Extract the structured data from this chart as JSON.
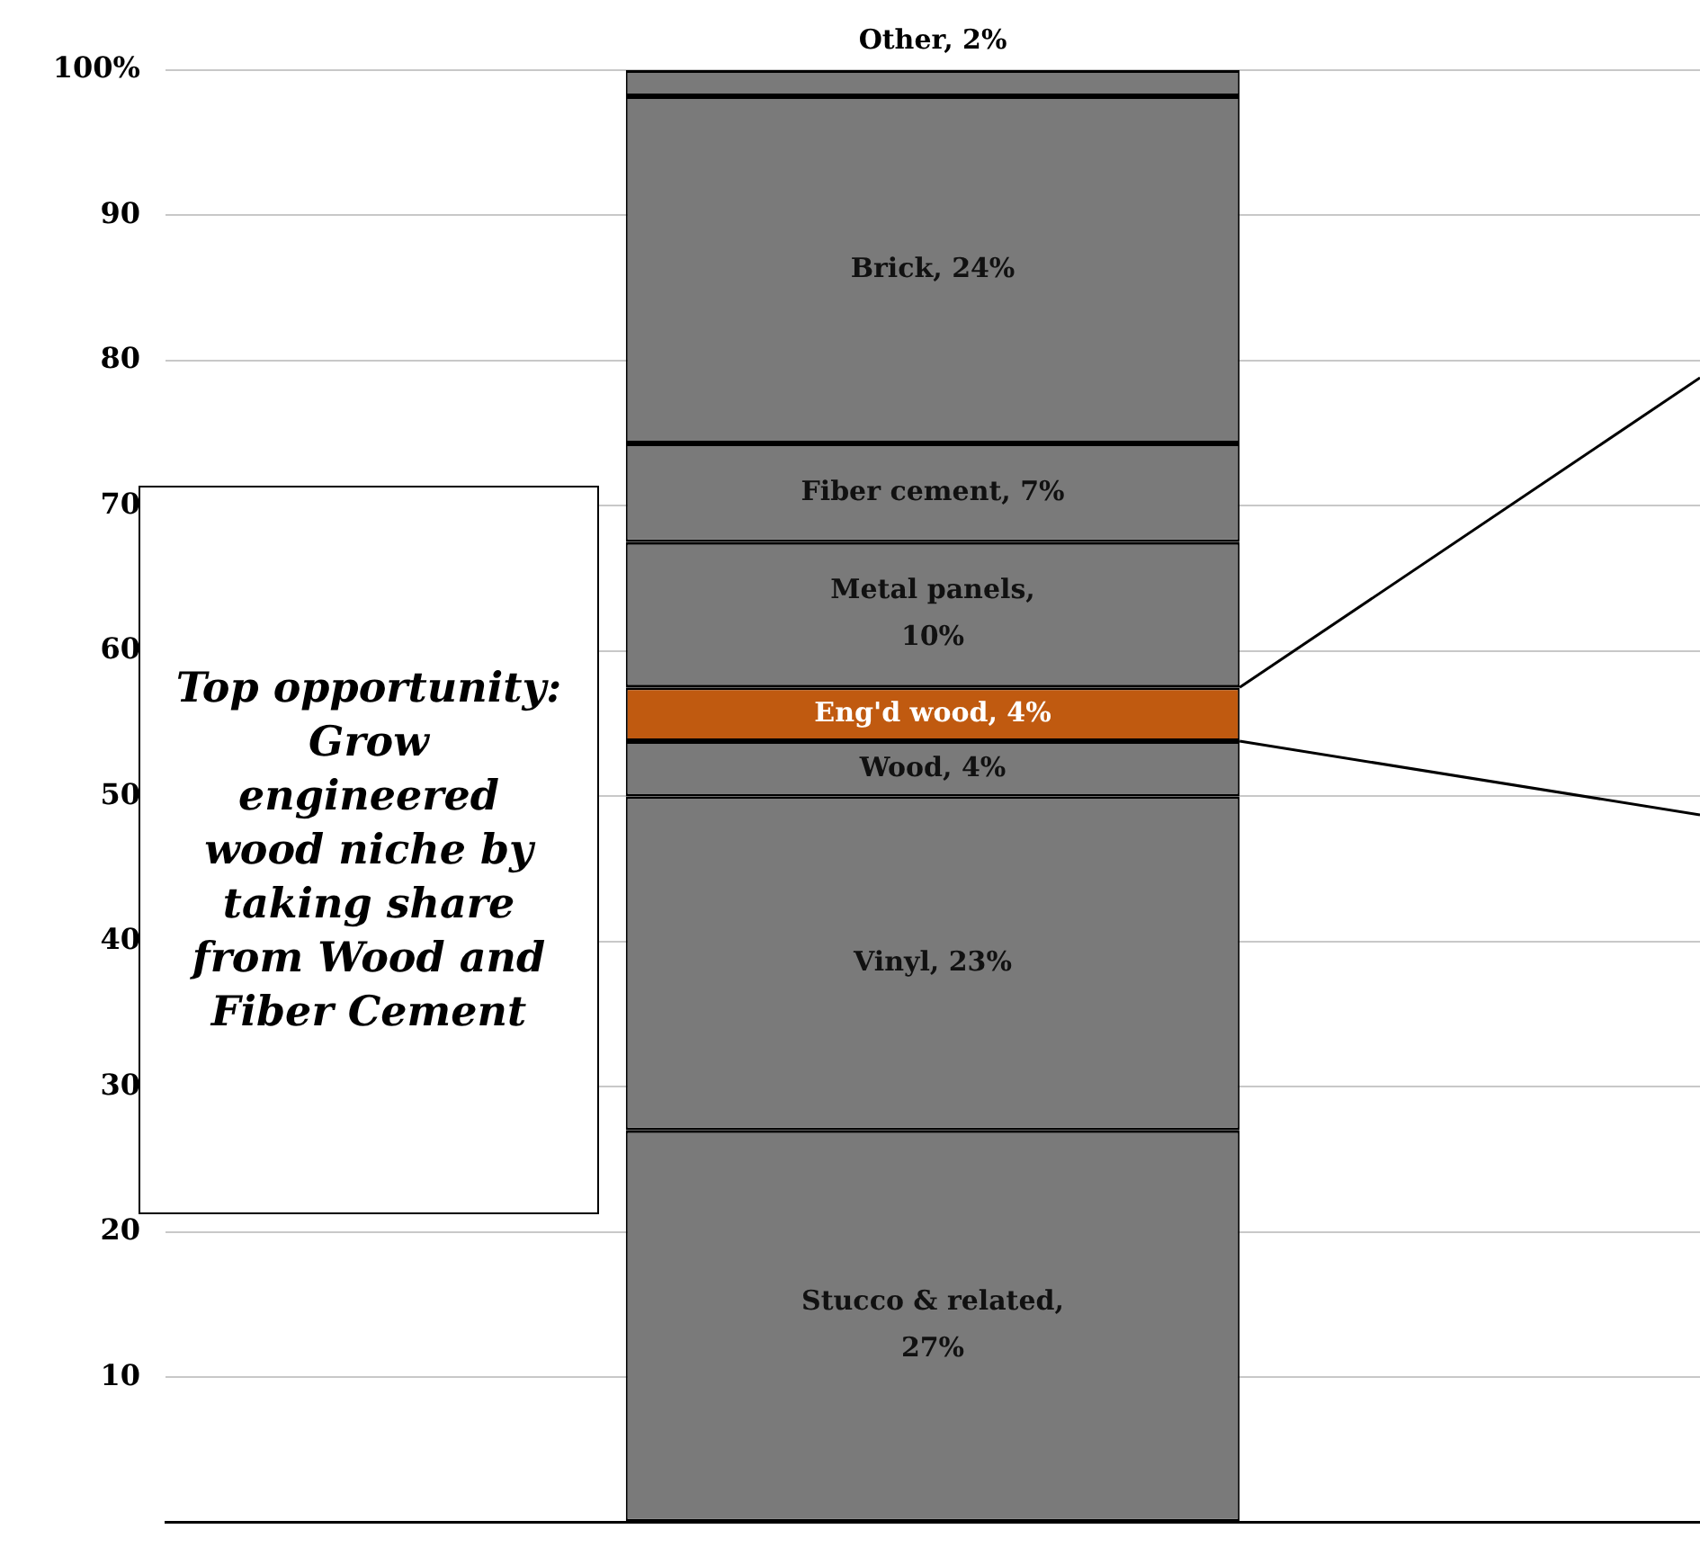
{
  "chart_data": {
    "type": "bar",
    "stacked": true,
    "categories": [
      null
    ],
    "series": [
      {
        "color": "#7a7a7a",
        "values": [
          27
        ],
        "value_labels": [
          "Stucco & related, 27%"
        ]
      },
      {
        "color": "#7a7a7a",
        "values": [
          23
        ],
        "value_labels": [
          "Vinyl, 23%"
        ]
      },
      {
        "color": "#7a7a7a",
        "values": [
          3.8
        ],
        "value_labels": [
          "Wood, 4%"
        ]
      },
      {
        "color": "#c05a10",
        "values": [
          3.7
        ],
        "value_labels": [
          "Eng'd wood, 4%"
        ]
      },
      {
        "color": "#7a7a7a",
        "values": [
          10
        ],
        "value_labels": [
          "Metal panels, 10%"
        ]
      },
      {
        "color": "#7a7a7a",
        "values": [
          6.8
        ],
        "value_labels": [
          "Fiber cement, 7%"
        ]
      },
      {
        "color": "#7a7a7a",
        "values": [
          23.9
        ],
        "value_labels": [
          "Brick, 24%"
        ]
      },
      {
        "color": "#7a7a7a",
        "values": [
          1.8
        ],
        "value_labels": [
          "Other, 2%"
        ]
      }
    ],
    "ylim": [
      0,
      100
    ],
    "yticks": [
      {
        "value": 0,
        "label": null
      },
      10,
      20,
      30,
      40,
      50,
      60,
      70,
      80,
      90,
      {
        "value": 100,
        "label": "100%"
      }
    ],
    "grid": "y",
    "legend": false,
    "annotations": [
      "Top opportunity: Grow engineered wood niche by taking share from Wood and Fiber Cement"
    ]
  }
}
